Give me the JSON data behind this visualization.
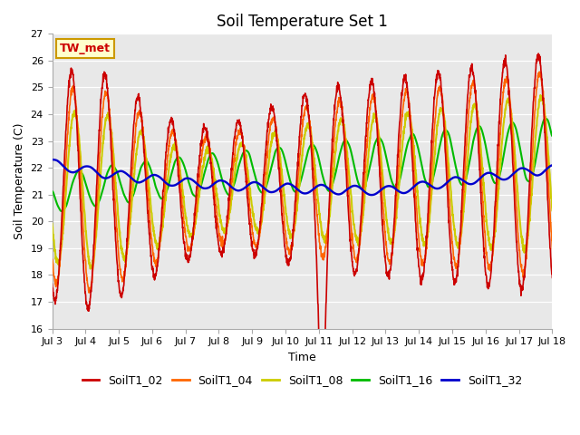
{
  "title": "Soil Temperature Set 1",
  "xlabel": "Time",
  "ylabel": "Soil Temperature (C)",
  "ylim": [
    16.0,
    27.0
  ],
  "yticks": [
    16.0,
    17.0,
    18.0,
    19.0,
    20.0,
    21.0,
    22.0,
    23.0,
    24.0,
    25.0,
    26.0,
    27.0
  ],
  "x_start_day": 3,
  "x_end_day": 18,
  "xtick_days": [
    3,
    4,
    5,
    6,
    7,
    8,
    9,
    10,
    11,
    12,
    13,
    14,
    15,
    16,
    17,
    18
  ],
  "colors": {
    "SoilT1_02": "#cc0000",
    "SoilT1_04": "#ff6600",
    "SoilT1_08": "#cccc00",
    "SoilT1_16": "#00bb00",
    "SoilT1_32": "#0000cc"
  },
  "annotation_text": "TW_met",
  "annotation_color": "#cc0000",
  "annotation_bg": "#ffffcc",
  "annotation_border": "#cc9900",
  "plot_bg_color": "#e8e8e8",
  "fig_bg_color": "#ffffff",
  "grid_color": "#ffffff",
  "linewidth": 1.2,
  "title_fontsize": 12,
  "axis_fontsize": 9,
  "tick_fontsize": 8,
  "legend_fontsize": 9
}
